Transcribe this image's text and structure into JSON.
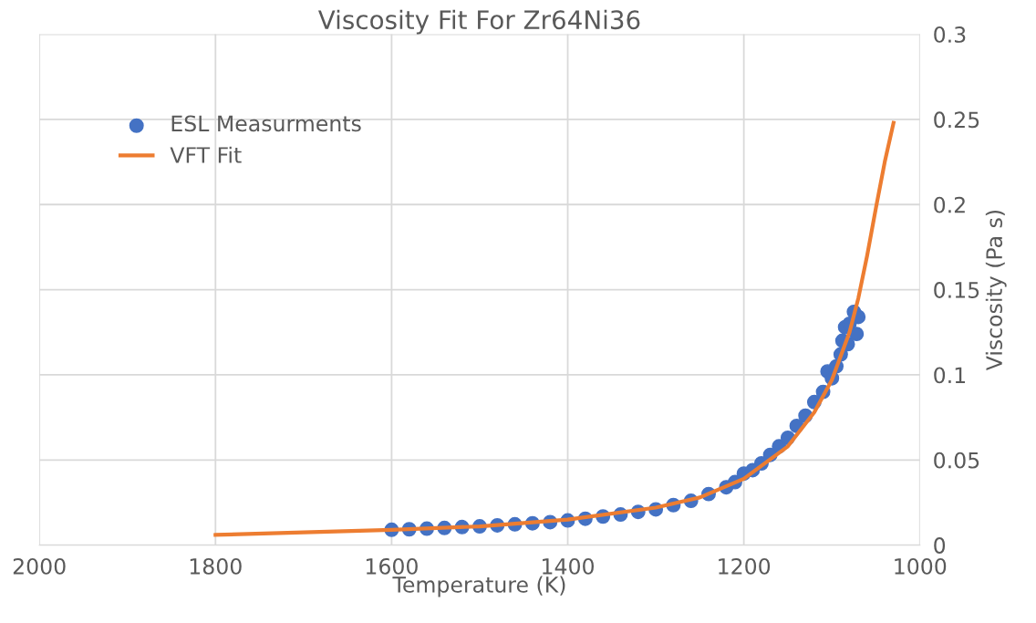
{
  "chart_data": {
    "type": "scatter",
    "title": "Viscosity Fit For Zr64Ni36",
    "xlabel": "Temperature (K)",
    "ylabel": "Viscosity (Pa s)",
    "xlim": [
      2000,
      1000
    ],
    "xticks": [
      2000,
      1800,
      1600,
      1400,
      1200,
      1000
    ],
    "ylim": [
      0,
      0.3
    ],
    "yticks": [
      0,
      0.05,
      0.1,
      0.15,
      0.2,
      0.25,
      0.3
    ],
    "grid": true,
    "legend": "top left",
    "series": [
      {
        "name": "ESL Measurments",
        "marker": "circle",
        "color": "#4472c4",
        "x": [
          1600,
          1580,
          1560,
          1540,
          1520,
          1500,
          1480,
          1460,
          1440,
          1420,
          1400,
          1380,
          1360,
          1340,
          1320,
          1300,
          1280,
          1260,
          1240,
          1220,
          1210,
          1200,
          1190,
          1180,
          1170,
          1160,
          1150,
          1140,
          1130,
          1120,
          1110,
          1105,
          1100,
          1095,
          1090,
          1088,
          1085,
          1082,
          1080,
          1075,
          1072,
          1070
        ],
        "values": [
          0.009,
          0.0093,
          0.0097,
          0.0101,
          0.0106,
          0.011,
          0.0116,
          0.0122,
          0.0128,
          0.0135,
          0.0145,
          0.0155,
          0.0168,
          0.018,
          0.0195,
          0.021,
          0.0235,
          0.026,
          0.03,
          0.034,
          0.037,
          0.042,
          0.044,
          0.048,
          0.053,
          0.058,
          0.063,
          0.07,
          0.076,
          0.084,
          0.09,
          0.102,
          0.098,
          0.105,
          0.112,
          0.12,
          0.128,
          0.118,
          0.13,
          0.137,
          0.124,
          0.134
        ]
      },
      {
        "name": "VFT Fit",
        "type": "line",
        "marker": "none",
        "line_style": "solid",
        "color": "#ed7d31",
        "x": [
          1800,
          1700,
          1600,
          1500,
          1400,
          1300,
          1250,
          1200,
          1150,
          1120,
          1100,
          1080,
          1070,
          1060,
          1050,
          1040,
          1030
        ],
        "values": [
          0.006,
          0.0075,
          0.009,
          0.011,
          0.015,
          0.022,
          0.028,
          0.039,
          0.058,
          0.078,
          0.097,
          0.125,
          0.145,
          0.17,
          0.198,
          0.225,
          0.248
        ]
      }
    ]
  }
}
